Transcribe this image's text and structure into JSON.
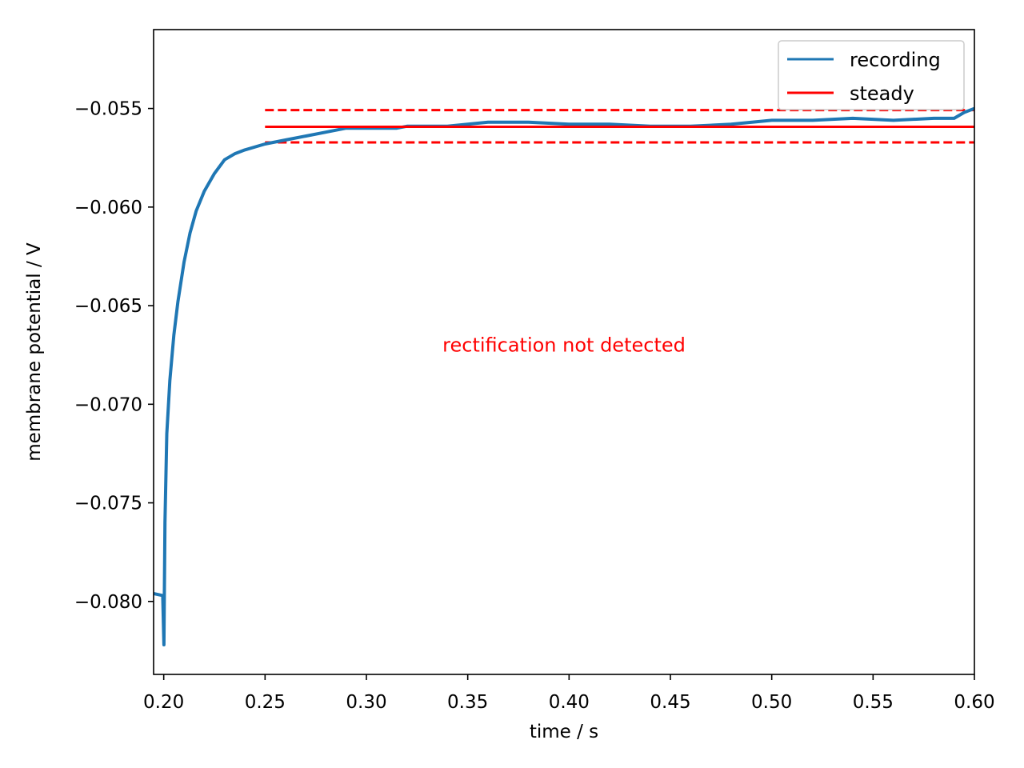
{
  "chart_data": {
    "type": "line",
    "xlabel": "time / s",
    "ylabel": "membrane potential / V",
    "xlim": [
      0.195,
      0.6
    ],
    "ylim": [
      -0.0837,
      -0.051
    ],
    "xticks": [
      0.2,
      0.25,
      0.3,
      0.35,
      0.4,
      0.45,
      0.5,
      0.55,
      0.6
    ],
    "xtick_labels": [
      "0.20",
      "0.25",
      "0.30",
      "0.35",
      "0.40",
      "0.45",
      "0.50",
      "0.55",
      "0.60"
    ],
    "yticks": [
      -0.08,
      -0.075,
      -0.07,
      -0.065,
      -0.06,
      -0.055
    ],
    "ytick_labels": [
      "−0.080",
      "−0.075",
      "−0.070",
      "−0.065",
      "−0.060",
      "−0.055"
    ],
    "grid": false,
    "legend_position": "upper right",
    "series": [
      {
        "name": "recording",
        "color": "#1f77b4",
        "points": [
          [
            0.195,
            -0.0796
          ],
          [
            0.1995,
            -0.0797
          ],
          [
            0.2001,
            -0.0822
          ],
          [
            0.2006,
            -0.076
          ],
          [
            0.2015,
            -0.0715
          ],
          [
            0.203,
            -0.0688
          ],
          [
            0.205,
            -0.0665
          ],
          [
            0.207,
            -0.0648
          ],
          [
            0.21,
            -0.0628
          ],
          [
            0.213,
            -0.0613
          ],
          [
            0.216,
            -0.0602
          ],
          [
            0.22,
            -0.0592
          ],
          [
            0.225,
            -0.0583
          ],
          [
            0.23,
            -0.0576
          ],
          [
            0.235,
            -0.0573
          ],
          [
            0.24,
            -0.0571
          ],
          [
            0.25,
            -0.0568
          ],
          [
            0.26,
            -0.0566
          ],
          [
            0.27,
            -0.0564
          ],
          [
            0.28,
            -0.0562
          ],
          [
            0.29,
            -0.056
          ],
          [
            0.3,
            -0.056
          ],
          [
            0.315,
            -0.056
          ],
          [
            0.32,
            -0.0559
          ],
          [
            0.34,
            -0.0559
          ],
          [
            0.36,
            -0.0557
          ],
          [
            0.38,
            -0.0557
          ],
          [
            0.4,
            -0.0558
          ],
          [
            0.42,
            -0.0558
          ],
          [
            0.44,
            -0.0559
          ],
          [
            0.46,
            -0.0559
          ],
          [
            0.48,
            -0.0558
          ],
          [
            0.5,
            -0.0556
          ],
          [
            0.52,
            -0.0556
          ],
          [
            0.54,
            -0.0555
          ],
          [
            0.56,
            -0.0556
          ],
          [
            0.58,
            -0.0555
          ],
          [
            0.59,
            -0.0555
          ],
          [
            0.595,
            -0.0552
          ],
          [
            0.6,
            -0.055
          ]
        ]
      },
      {
        "name": "steady",
        "color": "#ff0000",
        "points": [
          [
            0.25,
            -0.05593
          ],
          [
            0.6,
            -0.05593
          ]
        ]
      }
    ],
    "bounds": [
      {
        "color": "#ff0000",
        "style": "dashed",
        "points": [
          [
            0.25,
            -0.05508
          ],
          [
            0.6,
            -0.05508
          ]
        ]
      },
      {
        "color": "#ff0000",
        "style": "dashed",
        "points": [
          [
            0.25,
            -0.05672
          ],
          [
            0.6,
            -0.05672
          ]
        ]
      }
    ],
    "annotation": {
      "text": "rectification not detected",
      "x": 0.3975,
      "y": -0.067,
      "color": "#ff0000"
    }
  }
}
